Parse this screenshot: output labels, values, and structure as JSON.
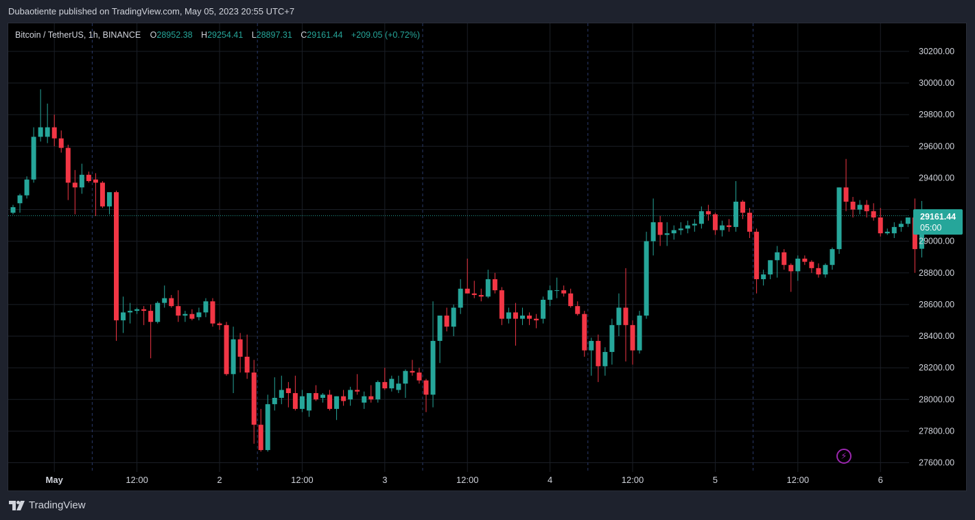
{
  "publisher": "Dubaotiente published on TradingView.com, May 05, 2023 20:55 UTC+7",
  "legend": {
    "symbol": "Bitcoin / TetherUS, 1h, BINANCE",
    "o_label": "O",
    "o_value": "28952.38",
    "h_label": "H",
    "h_value": "29254.41",
    "l_label": "L",
    "l_value": "28897.31",
    "c_label": "C",
    "c_value": "29161.44",
    "change": "+209.05 (+0.72%)"
  },
  "price_tag": {
    "price": "29161.44",
    "countdown": "05:00"
  },
  "footer": {
    "brand": "TradingView"
  },
  "colors": {
    "up": "#26a69a",
    "down": "#f23645",
    "background": "#000000",
    "frame": "#1e222d",
    "grid": "#1b1f27",
    "session_line": "#2a3a6a",
    "text": "#d1d4dc",
    "alert_icon": "#9c27b0"
  },
  "icons": {
    "alert": "lightning-bolt-icon",
    "logo": "tradingview-logo-icon"
  },
  "chart_data": {
    "type": "candlestick",
    "title": "Bitcoin / TetherUS, 1h, BINANCE",
    "ylim": [
      27540,
      30310
    ],
    "y_ticks": [
      27600,
      27800,
      28000,
      28200,
      28400,
      28600,
      28800,
      29000,
      29200,
      29400,
      29600,
      29800,
      30000,
      30200
    ],
    "y_tick_labels": [
      "27600.00",
      "27800.00",
      "28000.00",
      "28200.00",
      "28400.00",
      "28600.00",
      "28800.00",
      "29000.00",
      "",
      "29400.00",
      "29600.00",
      "29800.00",
      "30000.00",
      "30200.00"
    ],
    "x_labels": [
      {
        "bar": 6,
        "text": "May"
      },
      {
        "bar": 18,
        "text": "12:00"
      },
      {
        "bar": 30,
        "text": "2"
      },
      {
        "bar": 42,
        "text": "12:00"
      },
      {
        "bar": 54,
        "text": "3"
      },
      {
        "bar": 66,
        "text": "12:00"
      },
      {
        "bar": 78,
        "text": "4"
      },
      {
        "bar": 90,
        "text": "12:00"
      },
      {
        "bar": 102,
        "text": "5"
      },
      {
        "bar": 114,
        "text": "12:00"
      },
      {
        "bar": 126,
        "text": "6"
      }
    ],
    "session_breaks": [
      12,
      36,
      60,
      84,
      108
    ],
    "last_price": 29161.44,
    "candles": [
      {
        "o": 29180,
        "h": 29230,
        "l": 29170,
        "c": 29215
      },
      {
        "o": 29240,
        "h": 29300,
        "l": 29180,
        "c": 29290
      },
      {
        "o": 29290,
        "h": 29410,
        "l": 29270,
        "c": 29390
      },
      {
        "o": 29390,
        "h": 29720,
        "l": 29370,
        "c": 29660
      },
      {
        "o": 29660,
        "h": 29960,
        "l": 29630,
        "c": 29720
      },
      {
        "o": 29660,
        "h": 29870,
        "l": 29620,
        "c": 29720
      },
      {
        "o": 29720,
        "h": 29800,
        "l": 29600,
        "c": 29650
      },
      {
        "o": 29650,
        "h": 29700,
        "l": 29560,
        "c": 29590
      },
      {
        "o": 29590,
        "h": 29610,
        "l": 29260,
        "c": 29370
      },
      {
        "o": 29370,
        "h": 29450,
        "l": 29170,
        "c": 29340
      },
      {
        "o": 29340,
        "h": 29490,
        "l": 29300,
        "c": 29420
      },
      {
        "o": 29420,
        "h": 29440,
        "l": 29370,
        "c": 29380
      },
      {
        "o": 29390,
        "h": 29430,
        "l": 29160,
        "c": 29370
      },
      {
        "o": 29370,
        "h": 29380,
        "l": 29210,
        "c": 29220
      },
      {
        "o": 29220,
        "h": 29300,
        "l": 29170,
        "c": 29310
      },
      {
        "o": 29310,
        "h": 29320,
        "l": 28370,
        "c": 28500
      },
      {
        "o": 28500,
        "h": 28650,
        "l": 28420,
        "c": 28550
      },
      {
        "o": 28550,
        "h": 28610,
        "l": 28480,
        "c": 28560
      },
      {
        "o": 28560,
        "h": 28580,
        "l": 28540,
        "c": 28570
      },
      {
        "o": 28570,
        "h": 28590,
        "l": 28470,
        "c": 28560
      },
      {
        "o": 28560,
        "h": 28600,
        "l": 28260,
        "c": 28490
      },
      {
        "o": 28490,
        "h": 28620,
        "l": 28480,
        "c": 28610
      },
      {
        "o": 28610,
        "h": 28720,
        "l": 28580,
        "c": 28640
      },
      {
        "o": 28640,
        "h": 28660,
        "l": 28580,
        "c": 28590
      },
      {
        "o": 28590,
        "h": 28690,
        "l": 28490,
        "c": 28530
      },
      {
        "o": 28530,
        "h": 28560,
        "l": 28490,
        "c": 28540
      },
      {
        "o": 28540,
        "h": 28570,
        "l": 28500,
        "c": 28510
      },
      {
        "o": 28520,
        "h": 28580,
        "l": 28500,
        "c": 28550
      },
      {
        "o": 28550,
        "h": 28640,
        "l": 28520,
        "c": 28620
      },
      {
        "o": 28620,
        "h": 28640,
        "l": 28460,
        "c": 28480
      },
      {
        "o": 28480,
        "h": 28490,
        "l": 28440,
        "c": 28470
      },
      {
        "o": 28470,
        "h": 28490,
        "l": 28150,
        "c": 28160
      },
      {
        "o": 28160,
        "h": 28460,
        "l": 28040,
        "c": 28380
      },
      {
        "o": 28380,
        "h": 28420,
        "l": 28170,
        "c": 28270
      },
      {
        "o": 28270,
        "h": 28410,
        "l": 28130,
        "c": 28170
      },
      {
        "o": 28170,
        "h": 28250,
        "l": 27720,
        "c": 27840
      },
      {
        "o": 27840,
        "h": 27940,
        "l": 27670,
        "c": 27680
      },
      {
        "o": 27680,
        "h": 28030,
        "l": 27670,
        "c": 27970
      },
      {
        "o": 27970,
        "h": 28140,
        "l": 27930,
        "c": 28010
      },
      {
        "o": 28010,
        "h": 28150,
        "l": 27970,
        "c": 28060
      },
      {
        "o": 28070,
        "h": 28110,
        "l": 27950,
        "c": 28040
      },
      {
        "o": 28040,
        "h": 28150,
        "l": 27930,
        "c": 27940
      },
      {
        "o": 27940,
        "h": 28060,
        "l": 27920,
        "c": 28020
      },
      {
        "o": 27930,
        "h": 28040,
        "l": 27890,
        "c": 28040
      },
      {
        "o": 28040,
        "h": 28090,
        "l": 27990,
        "c": 28000
      },
      {
        "o": 28010,
        "h": 28040,
        "l": 27980,
        "c": 28030
      },
      {
        "o": 28030,
        "h": 28060,
        "l": 27930,
        "c": 27940
      },
      {
        "o": 27940,
        "h": 28020,
        "l": 27870,
        "c": 28020
      },
      {
        "o": 28020,
        "h": 28060,
        "l": 27960,
        "c": 27990
      },
      {
        "o": 28000,
        "h": 28080,
        "l": 27960,
        "c": 28060
      },
      {
        "o": 28060,
        "h": 28160,
        "l": 28030,
        "c": 28050
      },
      {
        "o": 27980,
        "h": 28050,
        "l": 27940,
        "c": 28020
      },
      {
        "o": 28020,
        "h": 28090,
        "l": 27980,
        "c": 28000
      },
      {
        "o": 28000,
        "h": 28120,
        "l": 27980,
        "c": 28110
      },
      {
        "o": 28110,
        "h": 28200,
        "l": 28060,
        "c": 28070
      },
      {
        "o": 28070,
        "h": 28150,
        "l": 28050,
        "c": 28130
      },
      {
        "o": 28060,
        "h": 28150,
        "l": 28040,
        "c": 28100
      },
      {
        "o": 28100,
        "h": 28190,
        "l": 28010,
        "c": 28180
      },
      {
        "o": 28180,
        "h": 28250,
        "l": 28150,
        "c": 28170
      },
      {
        "o": 28170,
        "h": 28200,
        "l": 28100,
        "c": 28120
      },
      {
        "o": 28120,
        "h": 28130,
        "l": 27920,
        "c": 28030
      },
      {
        "o": 28030,
        "h": 28620,
        "l": 27950,
        "c": 28370
      },
      {
        "o": 28370,
        "h": 28530,
        "l": 28230,
        "c": 28530
      },
      {
        "o": 28530,
        "h": 28580,
        "l": 28430,
        "c": 28460
      },
      {
        "o": 28460,
        "h": 28600,
        "l": 28400,
        "c": 28580
      },
      {
        "o": 28580,
        "h": 28760,
        "l": 28540,
        "c": 28700
      },
      {
        "o": 28700,
        "h": 28890,
        "l": 28670,
        "c": 28670
      },
      {
        "o": 28670,
        "h": 28750,
        "l": 28640,
        "c": 28660
      },
      {
        "o": 28660,
        "h": 28700,
        "l": 28620,
        "c": 28650
      },
      {
        "o": 28650,
        "h": 28820,
        "l": 28640,
        "c": 28760
      },
      {
        "o": 28760,
        "h": 28800,
        "l": 28670,
        "c": 28690
      },
      {
        "o": 28690,
        "h": 28710,
        "l": 28470,
        "c": 28510
      },
      {
        "o": 28510,
        "h": 28580,
        "l": 28480,
        "c": 28550
      },
      {
        "o": 28550,
        "h": 28610,
        "l": 28340,
        "c": 28510
      },
      {
        "o": 28510,
        "h": 28580,
        "l": 28470,
        "c": 28530
      },
      {
        "o": 28530,
        "h": 28550,
        "l": 28470,
        "c": 28510
      },
      {
        "o": 28510,
        "h": 28540,
        "l": 28450,
        "c": 28500
      },
      {
        "o": 28510,
        "h": 28650,
        "l": 28480,
        "c": 28630
      },
      {
        "o": 28630,
        "h": 28720,
        "l": 28590,
        "c": 28690
      },
      {
        "o": 28690,
        "h": 28770,
        "l": 28640,
        "c": 28690
      },
      {
        "o": 28690,
        "h": 28720,
        "l": 28650,
        "c": 28670
      },
      {
        "o": 28670,
        "h": 28700,
        "l": 28580,
        "c": 28590
      },
      {
        "o": 28590,
        "h": 28620,
        "l": 28530,
        "c": 28540
      },
      {
        "o": 28540,
        "h": 28560,
        "l": 28270,
        "c": 28310
      },
      {
        "o": 28310,
        "h": 28390,
        "l": 28150,
        "c": 28370
      },
      {
        "o": 28370,
        "h": 28410,
        "l": 28110,
        "c": 28210
      },
      {
        "o": 28210,
        "h": 28330,
        "l": 28150,
        "c": 28300
      },
      {
        "o": 28300,
        "h": 28510,
        "l": 28220,
        "c": 28470
      },
      {
        "o": 28470,
        "h": 28670,
        "l": 28400,
        "c": 28580
      },
      {
        "o": 28580,
        "h": 28830,
        "l": 28240,
        "c": 28470
      },
      {
        "o": 28470,
        "h": 28500,
        "l": 28220,
        "c": 28310
      },
      {
        "o": 28310,
        "h": 28560,
        "l": 28290,
        "c": 28530
      },
      {
        "o": 28530,
        "h": 29060,
        "l": 28510,
        "c": 29000
      },
      {
        "o": 29000,
        "h": 29270,
        "l": 28910,
        "c": 29120
      },
      {
        "o": 29120,
        "h": 29160,
        "l": 28970,
        "c": 29040
      },
      {
        "o": 29040,
        "h": 29120,
        "l": 28970,
        "c": 29050
      },
      {
        "o": 29050,
        "h": 29100,
        "l": 29010,
        "c": 29070
      },
      {
        "o": 29070,
        "h": 29120,
        "l": 29040,
        "c": 29080
      },
      {
        "o": 29080,
        "h": 29130,
        "l": 29050,
        "c": 29100
      },
      {
        "o": 29100,
        "h": 29140,
        "l": 29060,
        "c": 29110
      },
      {
        "o": 29110,
        "h": 29220,
        "l": 29080,
        "c": 29190
      },
      {
        "o": 29190,
        "h": 29230,
        "l": 29130,
        "c": 29170
      },
      {
        "o": 29170,
        "h": 29180,
        "l": 29040,
        "c": 29070
      },
      {
        "o": 29070,
        "h": 29130,
        "l": 29030,
        "c": 29100
      },
      {
        "o": 29100,
        "h": 29140,
        "l": 29060,
        "c": 29090
      },
      {
        "o": 29090,
        "h": 29380,
        "l": 29060,
        "c": 29250
      },
      {
        "o": 29250,
        "h": 29260,
        "l": 29140,
        "c": 29180
      },
      {
        "o": 29180,
        "h": 29210,
        "l": 29020,
        "c": 29060
      },
      {
        "o": 29060,
        "h": 29080,
        "l": 28670,
        "c": 28760
      },
      {
        "o": 28760,
        "h": 28820,
        "l": 28720,
        "c": 28790
      },
      {
        "o": 28790,
        "h": 28880,
        "l": 28760,
        "c": 28880
      },
      {
        "o": 28880,
        "h": 28970,
        "l": 28770,
        "c": 28930
      },
      {
        "o": 28930,
        "h": 28950,
        "l": 28820,
        "c": 28850
      },
      {
        "o": 28850,
        "h": 28860,
        "l": 28680,
        "c": 28810
      },
      {
        "o": 28810,
        "h": 28910,
        "l": 28750,
        "c": 28890
      },
      {
        "o": 28890,
        "h": 28910,
        "l": 28850,
        "c": 28870
      },
      {
        "o": 28870,
        "h": 28880,
        "l": 28800,
        "c": 28830
      },
      {
        "o": 28830,
        "h": 28860,
        "l": 28770,
        "c": 28790
      },
      {
        "o": 28790,
        "h": 28860,
        "l": 28770,
        "c": 28850
      },
      {
        "o": 28850,
        "h": 28960,
        "l": 28820,
        "c": 28950
      },
      {
        "o": 28950,
        "h": 29340,
        "l": 28920,
        "c": 29340
      },
      {
        "o": 29340,
        "h": 29520,
        "l": 29190,
        "c": 29250
      },
      {
        "o": 29250,
        "h": 29280,
        "l": 29150,
        "c": 29200
      },
      {
        "o": 29200,
        "h": 29260,
        "l": 29170,
        "c": 29230
      },
      {
        "o": 29230,
        "h": 29260,
        "l": 29150,
        "c": 29190
      },
      {
        "o": 29190,
        "h": 29240,
        "l": 29130,
        "c": 29150
      },
      {
        "o": 29150,
        "h": 29210,
        "l": 29030,
        "c": 29050
      },
      {
        "o": 29050,
        "h": 29080,
        "l": 29040,
        "c": 29060
      },
      {
        "o": 29050,
        "h": 29120,
        "l": 29020,
        "c": 29090
      },
      {
        "o": 29090,
        "h": 29130,
        "l": 29060,
        "c": 29110
      },
      {
        "o": 29110,
        "h": 29150,
        "l": 29090,
        "c": 29150
      },
      {
        "o": 29150,
        "h": 29270,
        "l": 28800,
        "c": 28950
      },
      {
        "o": 28952.38,
        "h": 29254.41,
        "l": 28897.31,
        "c": 29161.44
      }
    ]
  }
}
